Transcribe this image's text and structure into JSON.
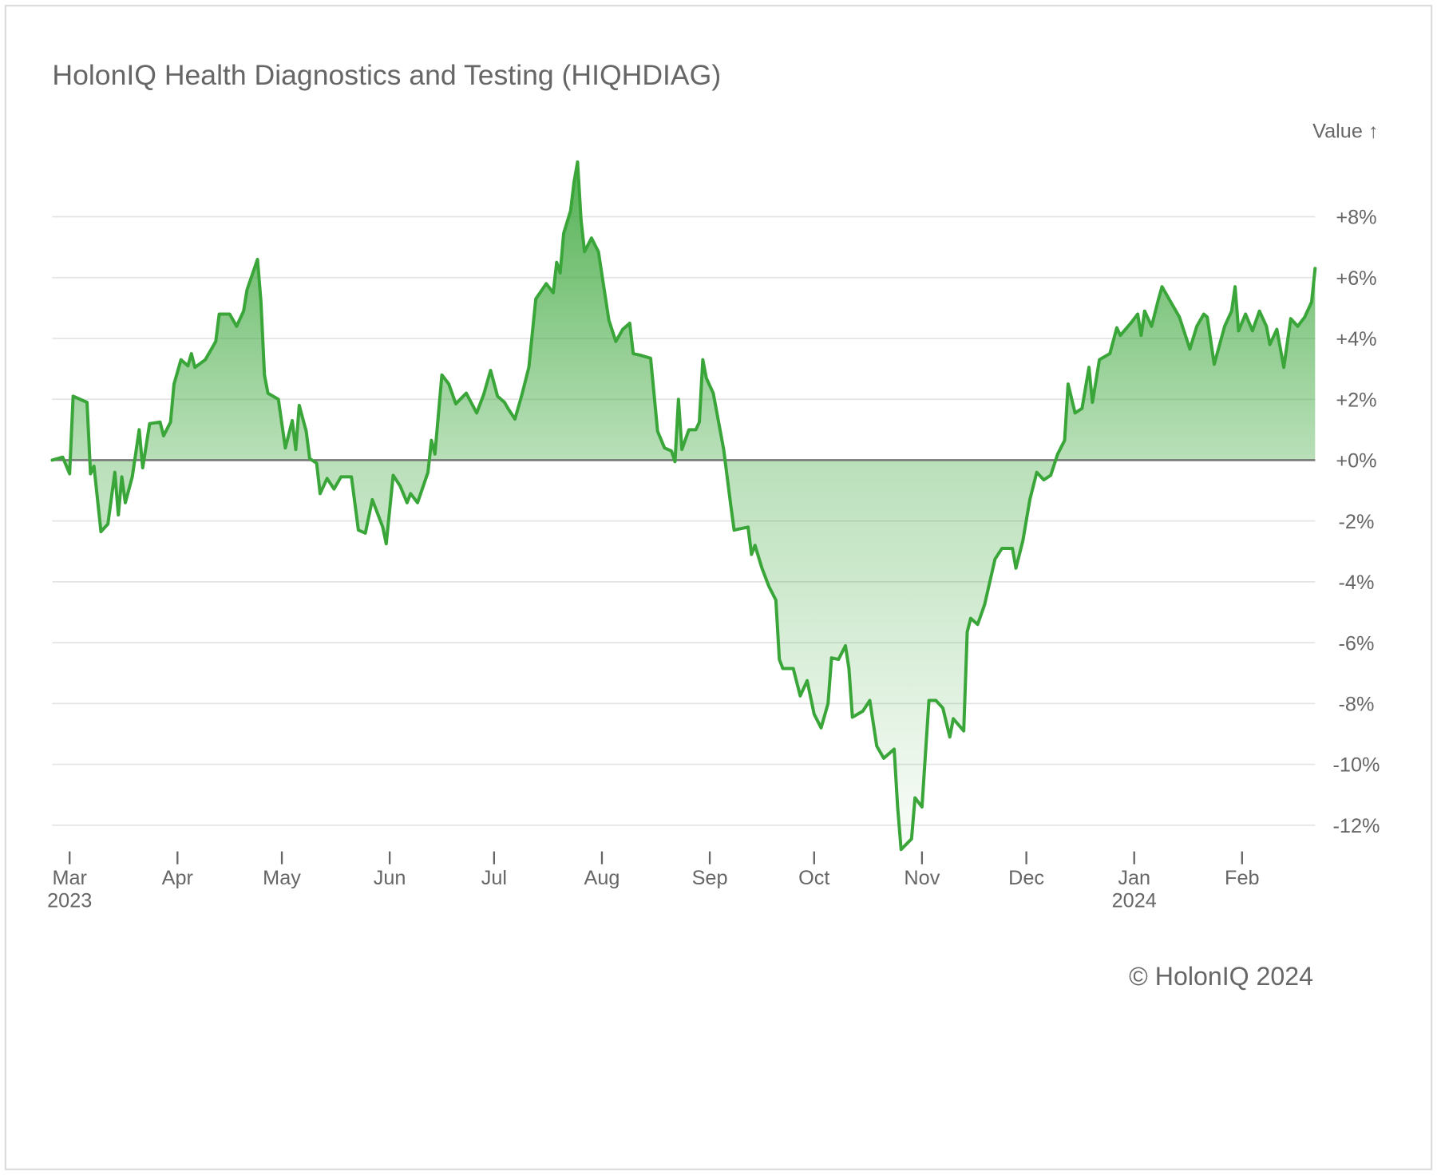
{
  "chart_data": {
    "type": "area",
    "title": "HolonIQ Health Diagnostics and Testing (HIQHDIAG)",
    "y_label": "Value ↑",
    "footer": "© HolonIQ 2024",
    "color": "#3aa63a",
    "grid": true,
    "xlim": [
      "2023-02-24",
      "2024-02-22"
    ],
    "ylim": [
      -13,
      10.5
    ],
    "xticks": [
      {
        "value": "2023-03-01",
        "label": "Mar\n2023"
      },
      {
        "value": "2023-04-01",
        "label": "Apr"
      },
      {
        "value": "2023-05-01",
        "label": "May"
      },
      {
        "value": "2023-06-01",
        "label": "Jun"
      },
      {
        "value": "2023-07-01",
        "label": "Jul"
      },
      {
        "value": "2023-08-01",
        "label": "Aug"
      },
      {
        "value": "2023-09-01",
        "label": "Sep"
      },
      {
        "value": "2023-10-01",
        "label": "Oct"
      },
      {
        "value": "2023-11-01",
        "label": "Nov"
      },
      {
        "value": "2023-12-01",
        "label": "Dec"
      },
      {
        "value": "2024-01-01",
        "label": "Jan\n2024"
      },
      {
        "value": "2024-02-01",
        "label": "Feb"
      }
    ],
    "yticks": [
      {
        "value": -12,
        "label": "-12%"
      },
      {
        "value": -10,
        "label": "-10%"
      },
      {
        "value": -8,
        "label": "-8%"
      },
      {
        "value": -6,
        "label": "-6%"
      },
      {
        "value": -4,
        "label": "-4%"
      },
      {
        "value": -2,
        "label": "-2%"
      },
      {
        "value": 0,
        "label": "+0%"
      },
      {
        "value": 2,
        "label": "+2%"
      },
      {
        "value": 4,
        "label": "+4%"
      },
      {
        "value": 6,
        "label": "+6%"
      },
      {
        "value": 8,
        "label": "+8%"
      }
    ],
    "x": [
      "2023-02-24",
      "2023-02-27",
      "2023-03-01",
      "2023-03-02",
      "2023-03-06",
      "2023-03-07",
      "2023-03-08",
      "2023-03-10",
      "2023-03-12",
      "2023-03-14",
      "2023-03-15",
      "2023-03-16",
      "2023-03-17",
      "2023-03-19",
      "2023-03-21",
      "2023-03-22",
      "2023-03-24",
      "2023-03-27",
      "2023-03-28",
      "2023-03-30",
      "2023-03-31",
      "2023-04-02",
      "2023-04-04",
      "2023-04-05",
      "2023-04-06",
      "2023-04-09",
      "2023-04-12",
      "2023-04-13",
      "2023-04-16",
      "2023-04-18",
      "2023-04-20",
      "2023-04-21",
      "2023-04-24",
      "2023-04-25",
      "2023-04-26",
      "2023-04-27",
      "2023-04-30",
      "2023-05-02",
      "2023-05-04",
      "2023-05-05",
      "2023-05-06",
      "2023-05-08",
      "2023-05-09",
      "2023-05-11",
      "2023-05-12",
      "2023-05-14",
      "2023-05-16",
      "2023-05-18",
      "2023-05-21",
      "2023-05-23",
      "2023-05-25",
      "2023-05-27",
      "2023-05-30",
      "2023-05-31",
      "2023-06-02",
      "2023-06-04",
      "2023-06-06",
      "2023-06-07",
      "2023-06-09",
      "2023-06-12",
      "2023-06-13",
      "2023-06-14",
      "2023-06-16",
      "2023-06-18",
      "2023-06-20",
      "2023-06-23",
      "2023-06-26",
      "2023-06-28",
      "2023-06-30",
      "2023-07-02",
      "2023-07-04",
      "2023-07-05",
      "2023-07-07",
      "2023-07-09",
      "2023-07-11",
      "2023-07-13",
      "2023-07-16",
      "2023-07-18",
      "2023-07-19",
      "2023-07-20",
      "2023-07-21",
      "2023-07-23",
      "2023-07-24",
      "2023-07-25",
      "2023-07-26",
      "2023-07-27",
      "2023-07-29",
      "2023-07-31",
      "2023-08-03",
      "2023-08-05",
      "2023-08-07",
      "2023-08-09",
      "2023-08-10",
      "2023-08-12",
      "2023-08-15",
      "2023-08-17",
      "2023-08-19",
      "2023-08-21",
      "2023-08-22",
      "2023-08-23",
      "2023-08-24",
      "2023-08-26",
      "2023-08-28",
      "2023-08-29",
      "2023-08-30",
      "2023-08-31",
      "2023-09-02",
      "2023-09-05",
      "2023-09-07",
      "2023-09-08",
      "2023-09-12",
      "2023-09-13",
      "2023-09-14",
      "2023-09-16",
      "2023-09-18",
      "2023-09-20",
      "2023-09-21",
      "2023-09-22",
      "2023-09-25",
      "2023-09-27",
      "2023-09-29",
      "2023-10-01",
      "2023-10-03",
      "2023-10-05",
      "2023-10-06",
      "2023-10-08",
      "2023-10-10",
      "2023-10-11",
      "2023-10-12",
      "2023-10-15",
      "2023-10-17",
      "2023-10-19",
      "2023-10-21",
      "2023-10-24",
      "2023-10-25",
      "2023-10-26",
      "2023-10-29",
      "2023-10-30",
      "2023-11-01",
      "2023-11-03",
      "2023-11-05",
      "2023-11-07",
      "2023-11-09",
      "2023-11-10",
      "2023-11-13",
      "2023-11-14",
      "2023-11-15",
      "2023-11-17",
      "2023-11-19",
      "2023-11-22",
      "2023-11-24",
      "2023-11-27",
      "2023-11-28",
      "2023-11-30",
      "2023-12-02",
      "2023-12-04",
      "2023-12-06",
      "2023-12-08",
      "2023-12-10",
      "2023-12-12",
      "2023-12-13",
      "2023-12-15",
      "2023-12-17",
      "2023-12-19",
      "2023-12-20",
      "2023-12-22",
      "2023-12-25",
      "2023-12-27",
      "2023-12-28",
      "2023-12-31",
      "2024-01-02",
      "2024-01-03",
      "2024-01-04",
      "2024-01-06",
      "2024-01-08",
      "2024-01-09",
      "2024-01-11",
      "2024-01-14",
      "2024-01-17",
      "2024-01-19",
      "2024-01-21",
      "2024-01-22",
      "2024-01-24",
      "2024-01-27",
      "2024-01-29",
      "2024-01-30",
      "2024-01-31",
      "2024-02-02",
      "2024-02-04",
      "2024-02-06",
      "2024-02-08",
      "2024-02-09",
      "2024-02-11",
      "2024-02-13",
      "2024-02-15",
      "2024-02-17",
      "2024-02-19",
      "2024-02-21",
      "2024-02-22"
    ],
    "values": [
      0.0,
      0.1,
      -0.45,
      2.1,
      1.9,
      -0.45,
      -0.2,
      -2.35,
      -2.1,
      -0.4,
      -1.8,
      -0.55,
      -1.4,
      -0.55,
      1.0,
      -0.25,
      1.2,
      1.25,
      0.8,
      1.25,
      2.5,
      3.3,
      3.1,
      3.5,
      3.05,
      3.3,
      3.9,
      4.8,
      4.8,
      4.4,
      4.9,
      5.6,
      6.6,
      5.2,
      2.8,
      2.2,
      2.0,
      0.4,
      1.3,
      0.35,
      1.8,
      0.95,
      0.05,
      -0.1,
      -1.1,
      -0.6,
      -0.95,
      -0.55,
      -0.55,
      -2.3,
      -2.4,
      -1.3,
      -2.2,
      -2.75,
      -0.5,
      -0.85,
      -1.4,
      -1.1,
      -1.4,
      -0.4,
      0.65,
      0.2,
      2.8,
      2.5,
      1.85,
      2.2,
      1.55,
      2.15,
      2.95,
      2.1,
      1.9,
      1.7,
      1.35,
      2.15,
      3.05,
      5.3,
      5.8,
      5.5,
      6.5,
      6.15,
      7.45,
      8.2,
      9.15,
      9.8,
      7.9,
      6.85,
      7.3,
      6.85,
      4.6,
      3.9,
      4.3,
      4.5,
      3.5,
      3.45,
      3.35,
      0.95,
      0.4,
      0.3,
      -0.05,
      2.0,
      0.35,
      1.0,
      1.0,
      1.25,
      3.3,
      2.7,
      2.2,
      0.35,
      -1.45,
      -2.3,
      -2.2,
      -3.1,
      -2.8,
      -3.55,
      -4.15,
      -4.6,
      -6.55,
      -6.85,
      -6.85,
      -7.75,
      -7.25,
      -8.35,
      -8.8,
      -8.0,
      -6.5,
      -6.55,
      -6.1,
      -6.85,
      -8.45,
      -8.25,
      -7.9,
      -9.4,
      -9.8,
      -9.5,
      -11.4,
      -12.8,
      -12.45,
      -11.1,
      -11.4,
      -7.9,
      -7.9,
      -8.15,
      -9.1,
      -8.5,
      -8.9,
      -5.65,
      -5.2,
      -5.4,
      -4.75,
      -3.25,
      -2.9,
      -2.9,
      -3.55,
      -2.65,
      -1.3,
      -0.4,
      -0.65,
      -0.5,
      0.2,
      0.65,
      2.5,
      1.55,
      1.7,
      3.05,
      1.9,
      3.3,
      3.5,
      4.35,
      4.1,
      4.5,
      4.8,
      4.1,
      4.9,
      4.4,
      5.3,
      5.7,
      5.3,
      4.7,
      3.65,
      4.4,
      4.8,
      4.7,
      3.15,
      4.4,
      4.9,
      5.7,
      4.25,
      4.8,
      4.25,
      4.9,
      4.4,
      3.8,
      4.3,
      3.05,
      4.65,
      4.4,
      4.7,
      5.2,
      6.3
    ]
  }
}
